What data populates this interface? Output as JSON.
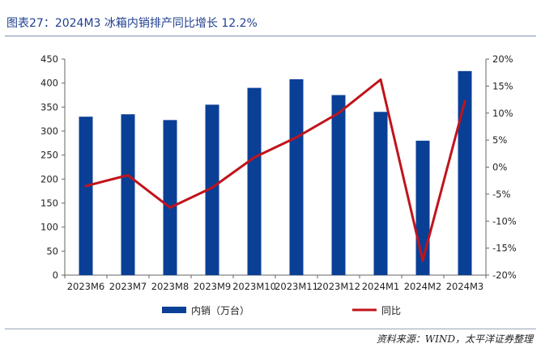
{
  "header": {
    "title": "图表27：2024M3 冰箱内销排产同比增长 12.2%"
  },
  "footer": {
    "source": "资料来源：WIND，太平洋证券整理"
  },
  "chart_data": {
    "type": "bar+line",
    "categories": [
      "2023M6",
      "2023M7",
      "2023M8",
      "2023M9",
      "2023M10",
      "2023M11",
      "2023M12",
      "2024M1",
      "2024M2",
      "2024M3"
    ],
    "series": [
      {
        "name": "内销（万台）",
        "type": "bar",
        "axis": "left",
        "values": [
          330,
          335,
          323,
          355,
          390,
          408,
          375,
          340,
          280,
          425
        ],
        "color": "#0a3f96"
      },
      {
        "name": "同比",
        "type": "line",
        "axis": "right",
        "values": [
          -3.5,
          -1.5,
          -7.5,
          -3.8,
          1.8,
          5.5,
          10.0,
          16.2,
          -17.3,
          12.2
        ],
        "color": "#c0141c"
      }
    ],
    "y_left": {
      "min": 0,
      "max": 450,
      "step": 50,
      "ticks": [
        "0",
        "50",
        "100",
        "150",
        "200",
        "250",
        "300",
        "350",
        "400",
        "450"
      ]
    },
    "y_right": {
      "min": -20,
      "max": 20,
      "step": 5,
      "ticks": [
        "-20%",
        "-15%",
        "-10%",
        "-5%",
        "0%",
        "5%",
        "10%",
        "15%",
        "20%"
      ]
    },
    "legend_position": "bottom",
    "grid": false
  }
}
